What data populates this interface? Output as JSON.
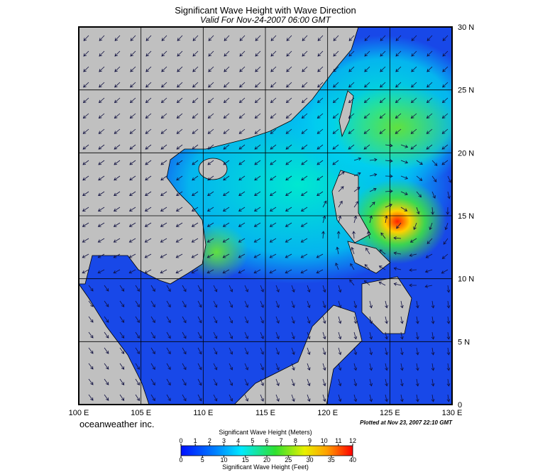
{
  "map": {
    "title": "Significant Wave Height with Wave Direction",
    "subtitle": "Valid For Nov-24-2007 06:00 GMT",
    "lon_range": [
      100,
      130
    ],
    "lat_range": [
      0,
      30
    ],
    "lon_ticks": [
      {
        "value": 100,
        "label": "100 E"
      },
      {
        "value": 105,
        "label": "105 E"
      },
      {
        "value": 110,
        "label": "110 E"
      },
      {
        "value": 115,
        "label": "115 E"
      },
      {
        "value": 120,
        "label": "120 E"
      },
      {
        "value": 125,
        "label": "125 E"
      },
      {
        "value": 130,
        "label": "130 E"
      }
    ],
    "lat_ticks": [
      {
        "value": 0,
        "label": "0"
      },
      {
        "value": 5,
        "label": "5 N"
      },
      {
        "value": 10,
        "label": "10 N"
      },
      {
        "value": 15,
        "label": "15 N"
      },
      {
        "value": 20,
        "label": "20 N"
      },
      {
        "value": 25,
        "label": "25 N"
      },
      {
        "value": 30,
        "label": "30 N"
      }
    ],
    "credit": "oceanweather inc.",
    "plotted": "Plotted at Nov 23, 2007 22:10 GMT"
  },
  "colorbar": {
    "meters_title": "Significant Wave Height (Meters)",
    "meters_range": [
      0,
      12
    ],
    "meters_ticks": [
      0,
      1,
      2,
      3,
      4,
      5,
      6,
      7,
      8,
      9,
      10,
      11,
      12
    ],
    "feet_title": "Significant Wave Height (Feet)",
    "feet_range": [
      0,
      40
    ],
    "feet_ticks": [
      0,
      5,
      10,
      15,
      20,
      25,
      30,
      35,
      40
    ]
  }
}
